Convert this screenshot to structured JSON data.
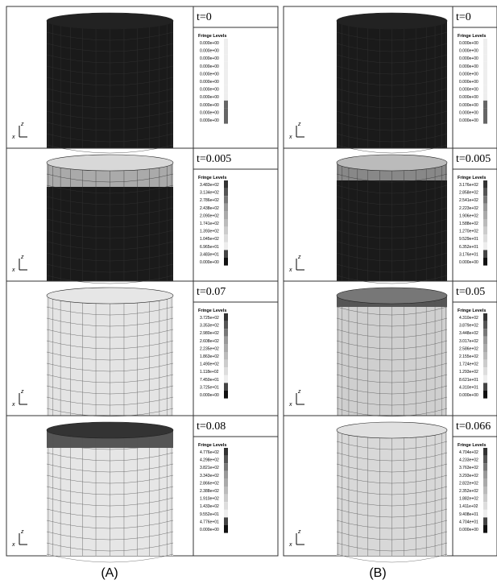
{
  "axis_labels": {
    "vertical": "z",
    "horizontal": "x"
  },
  "columns": [
    {
      "caption": "(A)",
      "panels": [
        {
          "time": "t=0",
          "legend_title": "Fringe Levels",
          "levels": [
            "0.000e+00",
            "0.000e+00",
            "0.000e+00",
            "0.000e+00",
            "0.000e+00",
            "0.000e+00",
            "0.000e+00",
            "0.000e+00",
            "0.000e+00",
            "0.000e+00",
            "0.000e+00"
          ]
        },
        {
          "time": "t=0.005",
          "legend_title": "Fringe Levels",
          "levels": [
            "3.483e+02",
            "3.134e+02",
            "2.786e+02",
            "2.438e+02",
            "2.090e+02",
            "1.741e+02",
            "1.393e+02",
            "1.045e+02",
            "6.965e+01",
            "3.483e+01",
            "0.000e+00"
          ]
        },
        {
          "time": "t=0.07",
          "legend_title": "Fringe Levels",
          "levels": [
            "3.725e+02",
            "3.353e+02",
            "2.980e+02",
            "2.608e+02",
            "2.235e+02",
            "1.863e+02",
            "1.490e+02",
            "1.118e+02",
            "7.450e+01",
            "3.725e+01",
            "0.000e+00"
          ]
        },
        {
          "time": "t=0.08",
          "legend_title": "Fringe Levels",
          "levels": [
            "4.776e+02",
            "4.298e+02",
            "3.821e+02",
            "3.343e+02",
            "2.866e+02",
            "2.388e+02",
            "1.910e+02",
            "1.433e+02",
            "9.552e+01",
            "4.776e+01",
            "0.000e+00"
          ]
        }
      ]
    },
    {
      "caption": "(B)",
      "panels": [
        {
          "time": "t=0",
          "legend_title": "Fringe Levels",
          "levels": [
            "0.000e+00",
            "0.000e+00",
            "0.000e+00",
            "0.000e+00",
            "0.000e+00",
            "0.000e+00",
            "0.000e+00",
            "0.000e+00",
            "0.000e+00",
            "0.000e+00",
            "0.000e+00"
          ]
        },
        {
          "time": "t=0.005",
          "legend_title": "Fringe Levels",
          "levels": [
            "3.176e+02",
            "2.858e+02",
            "2.541e+02",
            "2.223e+02",
            "1.906e+02",
            "1.588e+02",
            "1.270e+02",
            "9.529e+01",
            "6.352e+01",
            "3.176e+01",
            "0.000e+00"
          ]
        },
        {
          "time": "t=0.05",
          "legend_title": "Fringe Levels",
          "levels": [
            "4.310e+02",
            "3.879e+02",
            "3.448e+02",
            "3.017e+02",
            "2.586e+02",
            "2.155e+02",
            "1.724e+02",
            "1.293e+02",
            "8.621e+01",
            "4.310e+01",
            "0.000e+00"
          ]
        },
        {
          "time": "t=0.066",
          "legend_title": "Fringe Levels",
          "levels": [
            "4.704e+02",
            "4.233e+02",
            "3.763e+02",
            "3.293e+02",
            "2.822e+02",
            "2.352e+02",
            "1.882e+02",
            "1.411e+02",
            "9.408e+01",
            "4.704e+01",
            "0.000e+00"
          ]
        }
      ]
    }
  ]
}
